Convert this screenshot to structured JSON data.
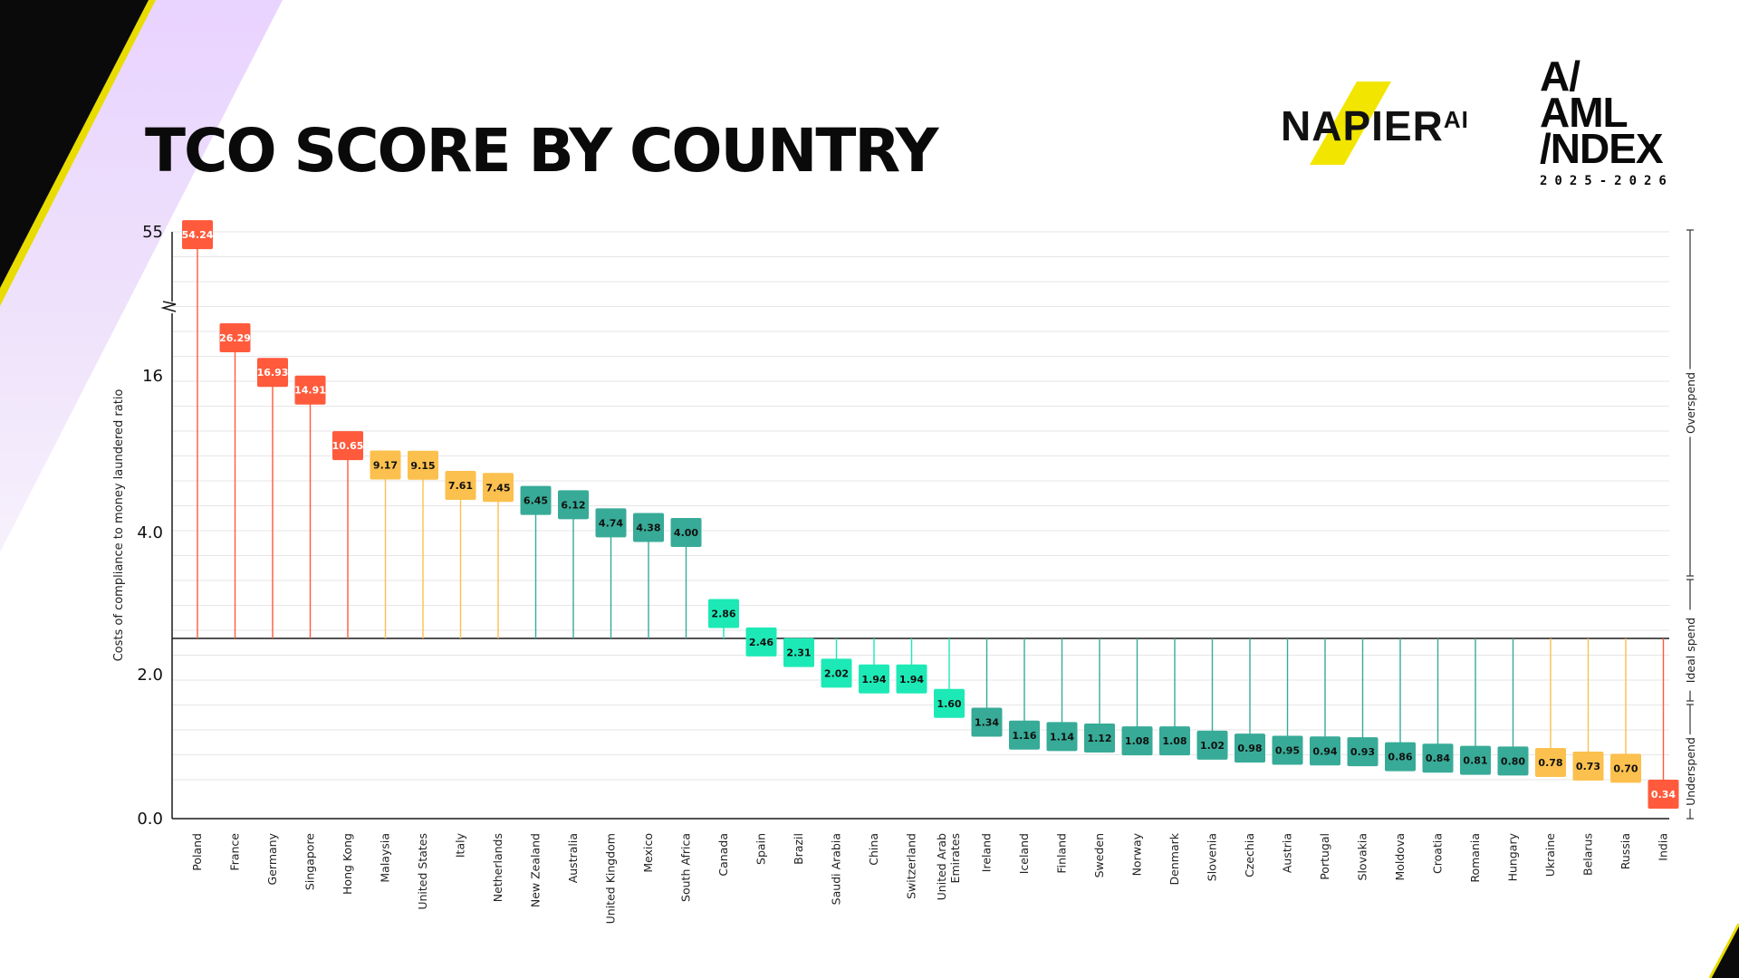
{
  "page": {
    "title": "TCO SCORE BY COUNTRY"
  },
  "brand": {
    "name": "NAPIER",
    "suffix": "AI"
  },
  "index_logo": {
    "line1": "A/",
    "line2": "AML",
    "line3": "/NDEX",
    "years": "2025-2026"
  },
  "colors": {
    "overspend_high": "#ff5a3c",
    "overspend_mid": "#fbc04e",
    "overspend_low": "#37ab97",
    "ideal": "#1de9b6",
    "baseline": "#1a1a1a",
    "accent_yellow": "#f2e600"
  },
  "chart_data": {
    "type": "bar",
    "title": "TCO SCORE BY COUNTRY",
    "ylabel": "Costs of compliance to money laundered ratio",
    "xlabel": "",
    "y_ticks": [
      "55",
      "16",
      "4.0",
      "2.0",
      "0.0"
    ],
    "y_axis_broken": true,
    "baseline_value": 2.5,
    "bands": [
      "Overspend",
      "Ideal spend",
      "Underspend"
    ],
    "categories": [
      "Poland",
      "France",
      "Germany",
      "Singapore",
      "Hong Kong",
      "Malaysia",
      "United States",
      "Italy",
      "Netherlands",
      "New Zealand",
      "Australia",
      "United Kingdom",
      "Mexico",
      "South Africa",
      "Canada",
      "Spain",
      "Brazil",
      "Saudi Arabia",
      "China",
      "Switzerland",
      "United Arab Emirates",
      "Ireland",
      "Iceland",
      "Finland",
      "Sweden",
      "Norway",
      "Denmark",
      "Slovenia",
      "Czechia",
      "Austria",
      "Portugal",
      "Slovakia",
      "Moldova",
      "Croatia",
      "Romania",
      "Hungary",
      "Ukraine",
      "Belarus",
      "Russia",
      "India"
    ],
    "values": [
      54.24,
      26.29,
      16.93,
      14.91,
      10.65,
      9.17,
      9.15,
      7.61,
      7.45,
      6.45,
      6.12,
      4.74,
      4.38,
      4.0,
      2.86,
      2.46,
      2.31,
      2.02,
      1.94,
      1.94,
      1.6,
      1.34,
      1.16,
      1.14,
      1.12,
      1.08,
      1.08,
      1.02,
      0.98,
      0.95,
      0.94,
      0.93,
      0.86,
      0.84,
      0.81,
      0.8,
      0.78,
      0.73,
      0.7,
      0.34
    ],
    "value_labels": [
      "54.24",
      "26.29",
      "16.93",
      "14.91",
      "10.65",
      "9.17",
      "9.15",
      "7.61",
      "7.45",
      "6.45",
      "6.12",
      "4.74",
      "4.38",
      "4.00",
      "2.86",
      "2.46",
      "2.31",
      "2.02",
      "1.94",
      "1.94",
      "1.60",
      "1.34",
      "1.16",
      "1.14",
      "1.12",
      "1.08",
      "1.08",
      "1.02",
      "0.98",
      "0.95",
      "0.94",
      "0.93",
      "0.86",
      "0.84",
      "0.81",
      "0.80",
      "0.78",
      "0.73",
      "0.70",
      "0.34"
    ],
    "categories_color": [
      "overspend_high",
      "overspend_high",
      "overspend_high",
      "overspend_high",
      "overspend_high",
      "overspend_mid",
      "overspend_mid",
      "overspend_mid",
      "overspend_mid",
      "overspend_low",
      "overspend_low",
      "overspend_low",
      "overspend_low",
      "overspend_low",
      "ideal",
      "ideal",
      "ideal",
      "ideal",
      "ideal",
      "ideal",
      "ideal",
      "overspend_low",
      "overspend_low",
      "overspend_low",
      "overspend_low",
      "overspend_low",
      "overspend_low",
      "overspend_low",
      "overspend_low",
      "overspend_low",
      "overspend_low",
      "overspend_low",
      "overspend_low",
      "overspend_low",
      "overspend_low",
      "overspend_low",
      "overspend_mid",
      "overspend_mid",
      "overspend_mid",
      "overspend_high"
    ]
  }
}
